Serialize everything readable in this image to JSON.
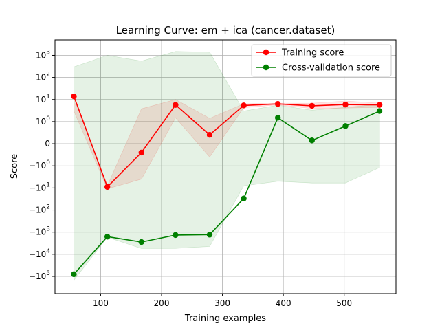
{
  "chart_data": {
    "type": "line",
    "title": "Learning Curve: em + ica (cancer.dataset)",
    "xlabel": "Training examples",
    "ylabel": "Score",
    "xlim": [
      25,
      585
    ],
    "ylim": [
      -600000,
      5000
    ],
    "yscale": "symlog",
    "grid": true,
    "legend_position": "top-right",
    "x_ticks": [
      100,
      200,
      300,
      400,
      500
    ],
    "y_ticks": [
      {
        "value": 1000,
        "label": "10^3"
      },
      {
        "value": 100,
        "label": "10^2"
      },
      {
        "value": 10,
        "label": "10^1"
      },
      {
        "value": 1,
        "label": "10^0"
      },
      {
        "value": 0,
        "label": "0"
      },
      {
        "value": -1,
        "label": "−10^0"
      },
      {
        "value": -10,
        "label": "−10^1"
      },
      {
        "value": -100,
        "label": "−10^2"
      },
      {
        "value": -1000,
        "label": "−10^3"
      },
      {
        "value": -10000,
        "label": "−10^4"
      },
      {
        "value": -100000,
        "label": "−10^5"
      }
    ],
    "x": [
      56,
      111,
      167,
      223,
      279,
      335,
      391,
      447,
      502,
      558
    ],
    "series": [
      {
        "name": "Training score",
        "color": "#ff0000",
        "values": [
          14,
          -9,
          -0.4,
          5.7,
          0.4,
          5.4,
          6.3,
          5.2,
          5.9,
          5.7
        ],
        "band_upper": [
          14,
          -8,
          3.8,
          10,
          1.4,
          6.4,
          6.8,
          6.8,
          8.5,
          6.9
        ],
        "band_lower": [
          3,
          -11,
          -4,
          1.5,
          -0.6,
          4.3,
          5.7,
          3.9,
          4.1,
          4.4
        ]
      },
      {
        "name": "Cross-validation score",
        "color": "#008000",
        "values": [
          -80000,
          -1600,
          -2800,
          -1350,
          -1300,
          -30,
          1.5,
          0.15,
          0.8,
          3
        ],
        "band_upper": [
          300,
          1000,
          550,
          1500,
          1400,
          3,
          5.5,
          3.3,
          4.4,
          6
        ],
        "band_lower": [
          -150000,
          -1700,
          -5500,
          -5400,
          -4400,
          -8,
          -5,
          -6,
          -6,
          -1.2
        ]
      }
    ]
  }
}
